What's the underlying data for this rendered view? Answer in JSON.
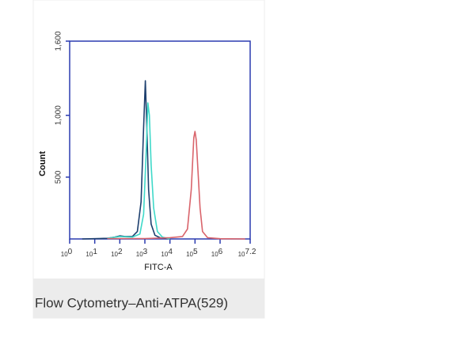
{
  "chart_data": {
    "type": "line",
    "caption": "Flow Cytometry–Anti-ATPA(529)",
    "xlabel": "FITC-A",
    "ylabel": "Count",
    "xscale": "log",
    "xlim": [
      1,
      15848931.9
    ],
    "xticks": [
      {
        "value": 1,
        "label": "10",
        "exponent": "0"
      },
      {
        "value": 10,
        "label": "10",
        "exponent": "1"
      },
      {
        "value": 100,
        "label": "10",
        "exponent": "2"
      },
      {
        "value": 1000,
        "label": "10",
        "exponent": "3"
      },
      {
        "value": 10000,
        "label": "10",
        "exponent": "4"
      },
      {
        "value": 100000,
        "label": "10",
        "exponent": "5"
      },
      {
        "value": 1000000,
        "label": "10",
        "exponent": "6"
      },
      {
        "value": 15848931.9,
        "label": "10",
        "exponent": "7.2"
      }
    ],
    "ylim": [
      0,
      1600
    ],
    "yticks": [
      500,
      {
        "value": 1000,
        "label": "1,000"
      },
      {
        "value": 1600,
        "label": "1,600"
      }
    ],
    "axis_color": "#2b3bb0",
    "series": [
      {
        "color": "#1d3f6e",
        "x": [
          3.16,
          31.6,
          63.1,
          100,
          158.5,
          316.2,
          501.2,
          707.9,
          891.3,
          1047.1,
          1202.3,
          1412.5,
          1778.3,
          2511.9,
          3981.1,
          10000
        ],
        "values": [
          0,
          5,
          15,
          25,
          20,
          20,
          60,
          300,
          900,
          1280,
          900,
          400,
          120,
          30,
          10,
          0
        ]
      },
      {
        "color": "#3fd9c9",
        "x": [
          31.6,
          100,
          316.2,
          631,
          891.3,
          1122,
          1318.3,
          1513.6,
          1778.3,
          2238.7,
          3162.3,
          5011.9,
          10000
        ],
        "values": [
          5,
          20,
          15,
          40,
          200,
          700,
          1100,
          1000,
          600,
          250,
          60,
          15,
          0
        ]
      },
      {
        "color": "#d9646b",
        "x": [
          31.6,
          1000,
          10000,
          31622.8,
          50118.7,
          70794.6,
          89125.1,
          100000,
          112201.8,
          131825.7,
          158489.3,
          199526.2,
          316227.8,
          1000000,
          10000000
        ],
        "values": [
          3,
          3,
          10,
          20,
          80,
          400,
          820,
          870,
          800,
          550,
          250,
          60,
          10,
          2,
          0
        ]
      }
    ]
  }
}
